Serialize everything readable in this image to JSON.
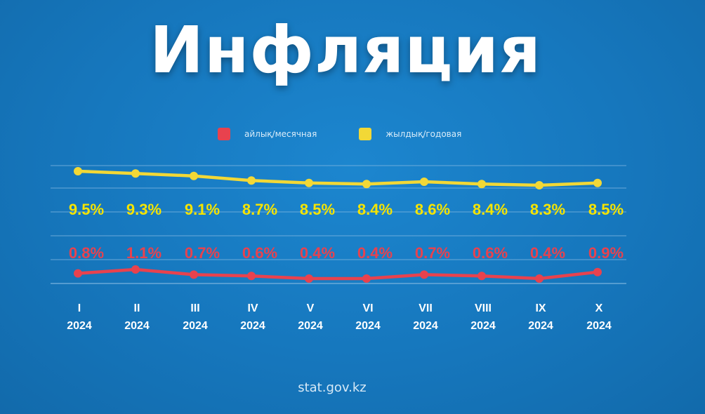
{
  "title": "Инфляция",
  "legend": {
    "monthly_label": "айлық/месячная",
    "annual_label": "жылдық/годовая"
  },
  "colors": {
    "monthly": "#e8424e",
    "annual": "#f2d836",
    "background": "#1677bd",
    "annual_label_color": "#f5e400"
  },
  "chart_data": {
    "type": "line",
    "categories": [
      "I 2024",
      "II 2024",
      "III 2024",
      "IV 2024",
      "V 2024",
      "VI 2024",
      "VII 2024",
      "VIII 2024",
      "IX 2024",
      "X 2024"
    ],
    "category_labels": [
      [
        "I",
        "2024"
      ],
      [
        "II",
        "2024"
      ],
      [
        "III",
        "2024"
      ],
      [
        "IV",
        "2024"
      ],
      [
        "V",
        "2024"
      ],
      [
        "VI",
        "2024"
      ],
      [
        "VII",
        "2024"
      ],
      [
        "VIII",
        "2024"
      ],
      [
        "IX",
        "2024"
      ],
      [
        "X",
        "2024"
      ]
    ],
    "series": [
      {
        "name": "жылдық/годовая",
        "values": [
          9.5,
          9.3,
          9.1,
          8.7,
          8.5,
          8.4,
          8.6,
          8.4,
          8.3,
          8.5
        ],
        "labels": [
          "9.5%",
          "9.3%",
          "9.1%",
          "8.7%",
          "8.5%",
          "8.4%",
          "8.6%",
          "8.4%",
          "8.3%",
          "8.5%"
        ]
      },
      {
        "name": "айлық/месячная",
        "values": [
          0.8,
          1.1,
          0.7,
          0.6,
          0.4,
          0.4,
          0.7,
          0.6,
          0.4,
          0.9
        ],
        "labels": [
          "0.8%",
          "1.1%",
          "0.7%",
          "0.6%",
          "0.4%",
          "0.4%",
          "0.7%",
          "0.6%",
          "0.4%",
          "0.9%"
        ]
      }
    ],
    "grid": true,
    "legend_position": "top"
  },
  "footer": "stat.gov.kz"
}
